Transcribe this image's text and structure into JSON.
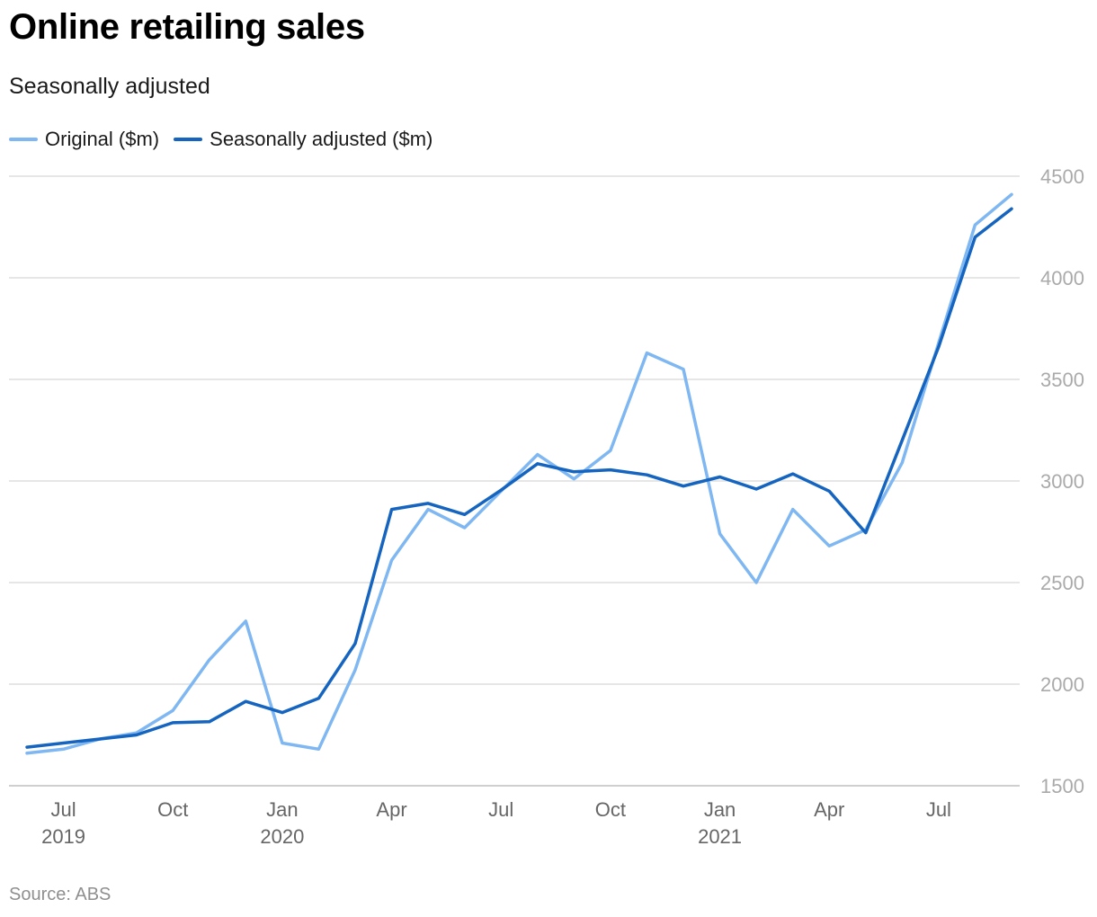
{
  "title": "Online retailing sales",
  "subtitle": "Seasonally adjusted",
  "source": "Source: ABS",
  "colors": {
    "original": "#7fb7f2",
    "seasonally_adjusted": "#1565c0",
    "grid": "#dddddd"
  },
  "chart_data": {
    "type": "line",
    "title": "Online retailing sales",
    "subtitle": "Seasonally adjusted",
    "x": [
      "2019-06",
      "2019-07",
      "2019-08",
      "2019-09",
      "2019-10",
      "2019-11",
      "2019-12",
      "2020-01",
      "2020-02",
      "2020-03",
      "2020-04",
      "2020-05",
      "2020-06",
      "2020-07",
      "2020-08",
      "2020-09",
      "2020-10",
      "2020-11",
      "2020-12",
      "2021-01",
      "2021-02",
      "2021-03",
      "2021-04",
      "2021-05",
      "2021-06",
      "2021-07",
      "2021-08",
      "2021-09"
    ],
    "series": [
      {
        "name": "Original ($m)",
        "color": "#7fb7f2",
        "values": [
          1660,
          1680,
          1730,
          1760,
          1870,
          2120,
          2310,
          1710,
          1680,
          2070,
          2610,
          2860,
          2770,
          2950,
          3130,
          3010,
          3150,
          3630,
          3550,
          2740,
          2500,
          2860,
          2680,
          2760,
          3090,
          3680,
          4260,
          4410
        ]
      },
      {
        "name": "Seasonally adjusted ($m)",
        "color": "#1565c0",
        "values": [
          1690,
          1710,
          1730,
          1750,
          1810,
          1815,
          1915,
          1860,
          1930,
          2200,
          2860,
          2890,
          2835,
          2955,
          3085,
          3045,
          3055,
          3030,
          2975,
          3020,
          2960,
          3035,
          2950,
          2745,
          3200,
          3660,
          4200,
          4340
        ]
      }
    ],
    "x_ticks": [
      {
        "x": "2019-07",
        "label": "Jul",
        "year": "2019"
      },
      {
        "x": "2019-10",
        "label": "Oct",
        "year": ""
      },
      {
        "x": "2020-01",
        "label": "Jan",
        "year": "2020"
      },
      {
        "x": "2020-04",
        "label": "Apr",
        "year": ""
      },
      {
        "x": "2020-07",
        "label": "Jul",
        "year": ""
      },
      {
        "x": "2020-10",
        "label": "Oct",
        "year": ""
      },
      {
        "x": "2021-01",
        "label": "Jan",
        "year": "2021"
      },
      {
        "x": "2021-04",
        "label": "Apr",
        "year": ""
      },
      {
        "x": "2021-07",
        "label": "Jul",
        "year": ""
      }
    ],
    "y_ticks": [
      1500,
      2000,
      2500,
      3000,
      3500,
      4000,
      4500
    ],
    "ylim": [
      1500,
      4500
    ],
    "y_axis_side": "right",
    "grid": true,
    "legend_position": "top-left"
  }
}
